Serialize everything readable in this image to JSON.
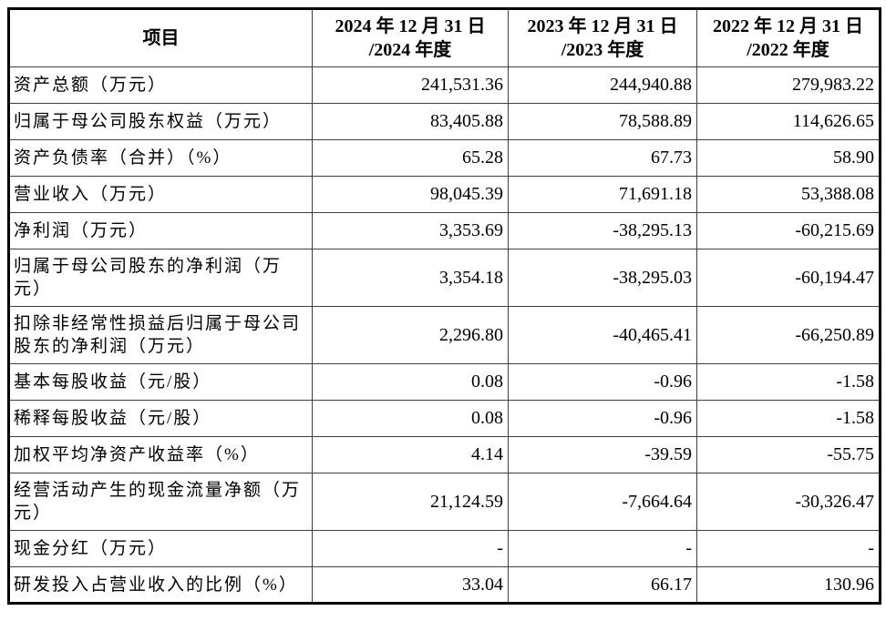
{
  "page": {
    "background": "#ffffff",
    "outer_border_color": "#000000",
    "inner_border_color": "#3f3f3f",
    "text_color": "#000000"
  },
  "table": {
    "header": {
      "item": "项目",
      "periods": [
        "2024 年 12 月 31 日\n/2024 年度",
        "2023 年 12 月 31 日\n/2023 年度",
        "2022 年 12 月 31 日\n/2022 年度"
      ]
    },
    "rows": [
      {
        "label": "资产总额（万元）",
        "values": [
          "241,531.36",
          "244,940.88",
          "279,983.22"
        ]
      },
      {
        "label": "归属于母公司股东权益（万元）",
        "values": [
          "83,405.88",
          "78,588.89",
          "114,626.65"
        ]
      },
      {
        "label": "资产负债率（合并）（%）",
        "values": [
          "65.28",
          "67.73",
          "58.90"
        ]
      },
      {
        "label": "营业收入（万元）",
        "values": [
          "98,045.39",
          "71,691.18",
          "53,388.08"
        ]
      },
      {
        "label": "净利润（万元）",
        "values": [
          "3,353.69",
          "-38,295.13",
          "-60,215.69"
        ]
      },
      {
        "label": "归属于母公司股东的净利润（万元）",
        "values": [
          "3,354.18",
          "-38,295.03",
          "-60,194.47"
        ]
      },
      {
        "label": "扣除非经常性损益后归属于母公司股东的净利润（万元）",
        "values": [
          "2,296.80",
          "-40,465.41",
          "-66,250.89"
        ]
      },
      {
        "label": "基本每股收益（元/股）",
        "values": [
          "0.08",
          "-0.96",
          "-1.58"
        ]
      },
      {
        "label": "稀释每股收益（元/股）",
        "values": [
          "0.08",
          "-0.96",
          "-1.58"
        ]
      },
      {
        "label": "加权平均净资产收益率（%）",
        "values": [
          "4.14",
          "-39.59",
          "-55.75"
        ]
      },
      {
        "label": "经营活动产生的现金流量净额（万元）",
        "values": [
          "21,124.59",
          "-7,664.64",
          "-30,326.47"
        ]
      },
      {
        "label": "现金分红（万元）",
        "values": [
          "-",
          "-",
          "-"
        ]
      },
      {
        "label": "研发投入占营业收入的比例（%）",
        "values": [
          "33.04",
          "66.17",
          "130.96"
        ]
      }
    ]
  }
}
